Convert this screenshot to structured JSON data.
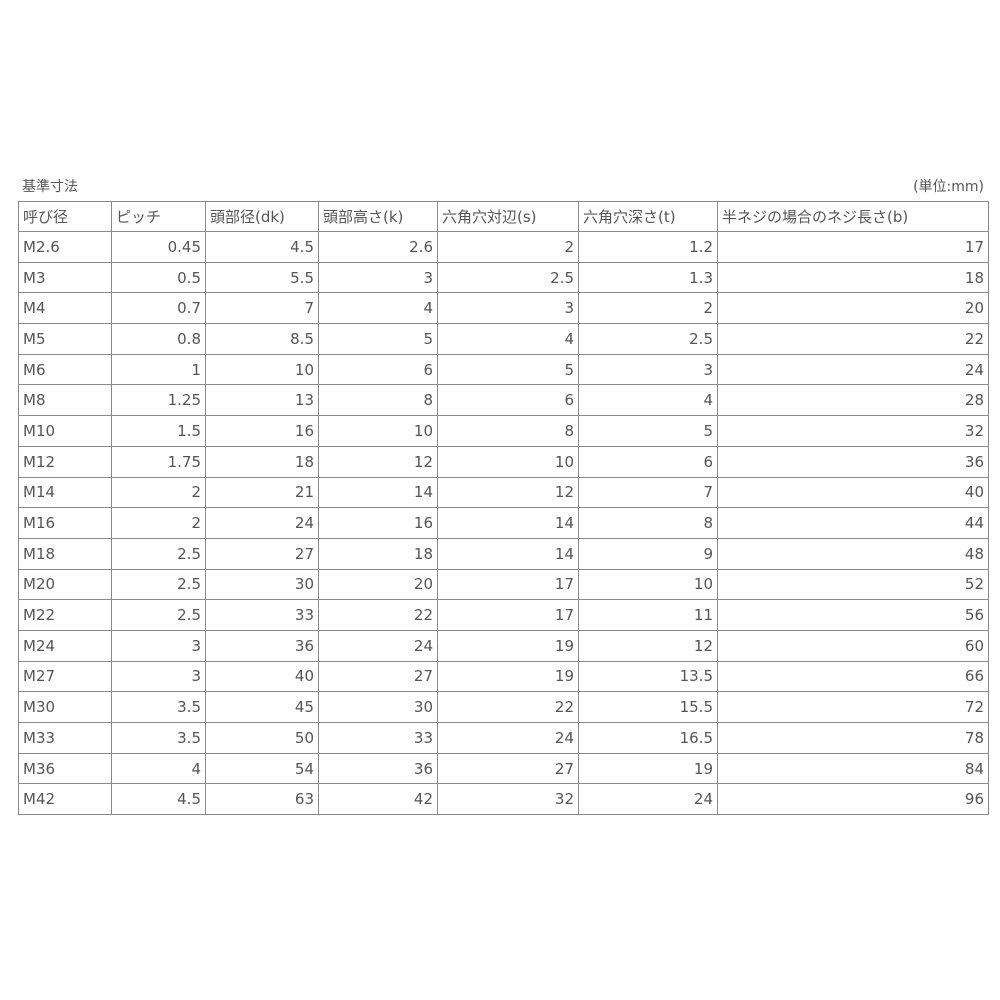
{
  "title": "基準寸法",
  "unit": "(単位:mm)",
  "columns": [
    "呼び径",
    "ピッチ",
    "頭部径(dk)",
    "頭部高さ(k)",
    "六角穴対辺(s)",
    "六角穴深さ(t)",
    "半ネジの場合のネジ長さ(b)"
  ],
  "rows": [
    [
      "M2.6",
      "0.45",
      "4.5",
      "2.6",
      "2",
      "1.2",
      "17"
    ],
    [
      "M3",
      "0.5",
      "5.5",
      "3",
      "2.5",
      "1.3",
      "18"
    ],
    [
      "M4",
      "0.7",
      "7",
      "4",
      "3",
      "2",
      "20"
    ],
    [
      "M5",
      "0.8",
      "8.5",
      "5",
      "4",
      "2.5",
      "22"
    ],
    [
      "M6",
      "1",
      "10",
      "6",
      "5",
      "3",
      "24"
    ],
    [
      "M8",
      "1.25",
      "13",
      "8",
      "6",
      "4",
      "28"
    ],
    [
      "M10",
      "1.5",
      "16",
      "10",
      "8",
      "5",
      "32"
    ],
    [
      "M12",
      "1.75",
      "18",
      "12",
      "10",
      "6",
      "36"
    ],
    [
      "M14",
      "2",
      "21",
      "14",
      "12",
      "7",
      "40"
    ],
    [
      "M16",
      "2",
      "24",
      "16",
      "14",
      "8",
      "44"
    ],
    [
      "M18",
      "2.5",
      "27",
      "18",
      "14",
      "9",
      "48"
    ],
    [
      "M20",
      "2.5",
      "30",
      "20",
      "17",
      "10",
      "52"
    ],
    [
      "M22",
      "2.5",
      "33",
      "22",
      "17",
      "11",
      "56"
    ],
    [
      "M24",
      "3",
      "36",
      "24",
      "19",
      "12",
      "60"
    ],
    [
      "M27",
      "3",
      "40",
      "27",
      "19",
      "13.5",
      "66"
    ],
    [
      "M30",
      "3.5",
      "45",
      "30",
      "22",
      "15.5",
      "72"
    ],
    [
      "M33",
      "3.5",
      "50",
      "33",
      "24",
      "16.5",
      "78"
    ],
    [
      "M36",
      "4",
      "54",
      "36",
      "27",
      "19",
      "84"
    ],
    [
      "M42",
      "4.5",
      "63",
      "42",
      "32",
      "24",
      "96"
    ]
  ]
}
